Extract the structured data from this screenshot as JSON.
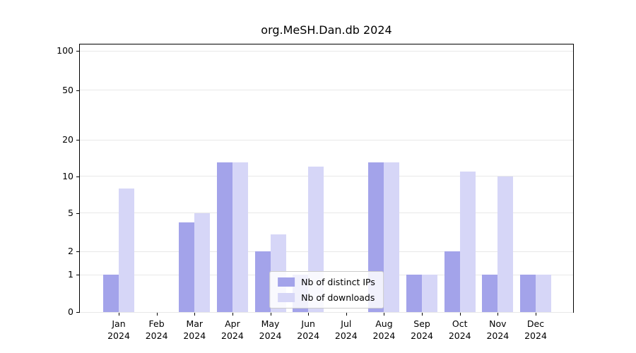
{
  "chart_data": {
    "type": "bar",
    "title": "org.MeSH.Dan.db 2024",
    "categories": [
      "Jan",
      "Feb",
      "Mar",
      "Apr",
      "May",
      "Jun",
      "Jul",
      "Aug",
      "Sep",
      "Oct",
      "Nov",
      "Dec"
    ],
    "year_label": "2024",
    "series": [
      {
        "name": "Nb of distinct IPs",
        "color": "#a3a3ea",
        "values": [
          1,
          0,
          4,
          13,
          2,
          1,
          0,
          13,
          1,
          2,
          1,
          1
        ]
      },
      {
        "name": "Nb of downloads",
        "color": "#d6d6f7",
        "values": [
          8,
          0,
          5,
          13,
          3,
          12,
          0,
          13,
          1,
          11,
          10,
          1
        ]
      }
    ],
    "yticks": [
      0,
      1,
      2,
      5,
      10,
      20,
      50,
      100
    ],
    "ylim": [
      0,
      100
    ],
    "yscale": "symlog",
    "xlabel": "",
    "ylabel": "",
    "grid": true,
    "legend_position": "lower center",
    "colors": {
      "background": "#ffffff",
      "grid": "#e8e8e8",
      "axis": "#000000",
      "legend_border": "#cccccc"
    }
  }
}
